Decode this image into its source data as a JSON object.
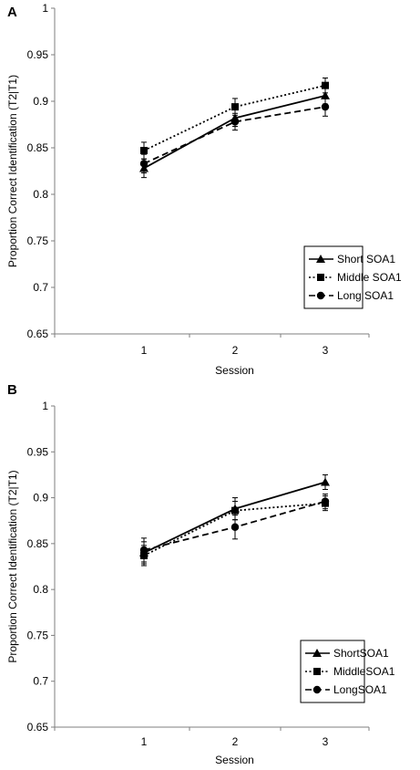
{
  "chart_data": [
    {
      "panel_label": "A",
      "type": "line",
      "xlabel": "Session",
      "ylabel": "Proportion Correct Identification (T2|T1)",
      "x": [
        1,
        2,
        3
      ],
      "x_tick_labels": [
        "1",
        "2",
        "3"
      ],
      "ylim": [
        0.65,
        1
      ],
      "y_ticks": [
        0.65,
        0.7,
        0.75,
        0.8,
        0.85,
        0.9,
        0.95,
        1
      ],
      "y_tick_labels": [
        "0.65",
        "0.7",
        "0.75",
        "0.8",
        "0.85",
        "0.9",
        "0.95",
        "1"
      ],
      "grid": false,
      "legend_position": "bottom-right",
      "series": [
        {
          "name": "Short SOA1",
          "marker": "triangle",
          "line_style": "solid",
          "values": [
            0.828,
            0.882,
            0.906
          ],
          "error": [
            0.01,
            0.009,
            0.009
          ]
        },
        {
          "name": "Middle SOA1",
          "marker": "square",
          "line_style": "dotted",
          "values": [
            0.847,
            0.894,
            0.917
          ],
          "error": [
            0.009,
            0.009,
            0.008
          ]
        },
        {
          "name": "Long SOA1",
          "marker": "circle",
          "line_style": "dashed",
          "values": [
            0.833,
            0.878,
            0.894
          ],
          "error": [
            0.01,
            0.009,
            0.01
          ]
        }
      ]
    },
    {
      "panel_label": "B",
      "type": "line",
      "xlabel": "Session",
      "ylabel": "Proportion Correct Identification (T2|T1)",
      "x": [
        1,
        2,
        3
      ],
      "x_tick_labels": [
        "1",
        "2",
        "3"
      ],
      "ylim": [
        0.65,
        1
      ],
      "y_ticks": [
        0.65,
        0.7,
        0.75,
        0.8,
        0.85,
        0.9,
        0.95,
        1
      ],
      "y_tick_labels": [
        "0.65",
        "0.7",
        "0.75",
        "0.8",
        "0.85",
        "0.9",
        "0.95",
        "1"
      ],
      "grid": false,
      "legend_position": "bottom-right",
      "series": [
        {
          "name": "ShortSOA1",
          "marker": "triangle",
          "line_style": "solid",
          "values": [
            0.84,
            0.888,
            0.917
          ],
          "error": [
            0.012,
            0.012,
            0.008
          ]
        },
        {
          "name": "MiddleSOA1",
          "marker": "square",
          "line_style": "dotted",
          "values": [
            0.837,
            0.886,
            0.894
          ],
          "error": [
            0.011,
            0.01,
            0.008
          ]
        },
        {
          "name": "LongSOA1",
          "marker": "circle",
          "line_style": "dashed",
          "values": [
            0.843,
            0.868,
            0.896
          ],
          "error": [
            0.013,
            0.013,
            0.008
          ]
        }
      ]
    }
  ]
}
